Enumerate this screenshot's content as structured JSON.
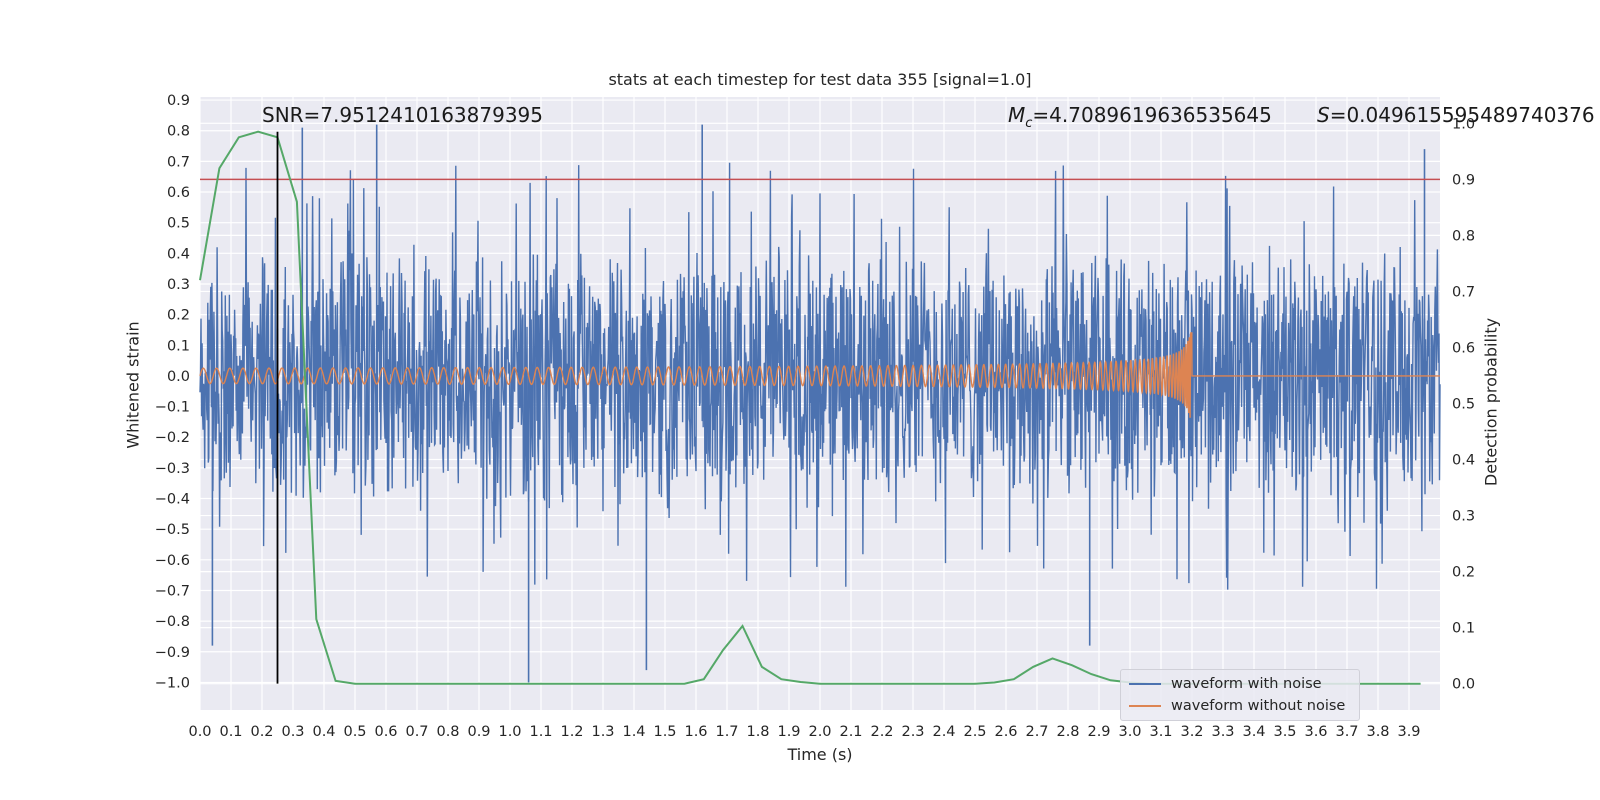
{
  "title": "stats at each timestep for test data 355 [signal=1.0]",
  "annotations": {
    "snr": "SNR=7.9512410163879395",
    "mc_label": "M",
    "mc_sub": "c",
    "mc_value": "=4.7089619636535645",
    "s_label": "S",
    "s_value": "=0.049615595489740376"
  },
  "colors": {
    "background": "#eaeaf2",
    "grid": "#ffffff",
    "noise": "#4c72b0",
    "clean": "#dd8452",
    "probability": "#55a868",
    "threshold": "#c44e52",
    "marker": "#000000"
  },
  "chart_data": {
    "type": "line",
    "xlabel": "Time (s)",
    "ylabel_left": "Whitened strain",
    "ylabel_right": "Detection probability",
    "xlim": [
      0.0,
      4.0
    ],
    "ylim_left": [
      -1.09,
      0.91
    ],
    "ylim_right": [
      -0.047,
      1.047
    ],
    "x_ticks": [
      "0.0",
      "0.1",
      "0.2",
      "0.3",
      "0.4",
      "0.5",
      "0.6",
      "0.7",
      "0.8",
      "0.9",
      "1.0",
      "1.1",
      "1.2",
      "1.3",
      "1.4",
      "1.5",
      "1.6",
      "1.7",
      "1.8",
      "1.9",
      "2.0",
      "2.1",
      "2.2",
      "2.3",
      "2.4",
      "2.5",
      "2.6",
      "2.7",
      "2.8",
      "2.9",
      "3.0",
      "3.1",
      "3.2",
      "3.3",
      "3.4",
      "3.5",
      "3.6",
      "3.7",
      "3.8",
      "3.9"
    ],
    "y_ticks_left": [
      "0.9",
      "0.8",
      "0.7",
      "0.6",
      "0.5",
      "0.4",
      "0.3",
      "0.2",
      "0.1",
      "0.0",
      "-0.1",
      "-0.2",
      "-0.3",
      "-0.4",
      "-0.5",
      "-0.6",
      "-0.7",
      "-0.8",
      "-0.9",
      "-1.0"
    ],
    "y_ticks_right": [
      "1.0",
      "0.9",
      "0.8",
      "0.7",
      "0.6",
      "0.5",
      "0.4",
      "0.3",
      "0.2",
      "0.1",
      "0.0"
    ],
    "grid": true,
    "legend_position": "lower-right",
    "threshold": 0.9,
    "merger_marker_time": 0.25,
    "series": [
      {
        "name": "waveform with noise",
        "axis": "left",
        "description_of_values": "whitened noisy strain, amplitude mostly within [-0.6, 0.6] with spikes to about 0.82 and -1.0",
        "x_range": [
          0.0,
          4.0
        ],
        "typical_envelope": [
          -0.45,
          0.45
        ],
        "peaks": [
          [
            0.33,
            0.81
          ],
          [
            0.57,
            0.82
          ],
          [
            1.62,
            0.82
          ],
          [
            1.06,
            -1.0
          ],
          [
            1.44,
            -0.96
          ],
          [
            0.04,
            -0.88
          ],
          [
            2.87,
            -0.88
          ],
          [
            3.95,
            0.74
          ]
        ]
      },
      {
        "name": "waveform without noise",
        "axis": "left",
        "description_of_values": "chirp signal, amplitude grows from about 0.02 to 0.17 until merger at 3.2 s, then flat at 0",
        "merger_time": 3.2,
        "start_amplitude": 0.025,
        "peak_amplitude": 0.17
      },
      {
        "name": "detection probability",
        "axis": "right",
        "x": [
          0.0,
          0.0625,
          0.125,
          0.1875,
          0.25,
          0.3125,
          0.375,
          0.4375,
          0.5,
          0.5625,
          0.625,
          0.6875,
          0.75,
          0.8125,
          0.875,
          0.9375,
          1.0,
          1.0625,
          1.125,
          1.1875,
          1.25,
          1.3125,
          1.375,
          1.4375,
          1.5,
          1.5625,
          1.625,
          1.6875,
          1.75,
          1.8125,
          1.875,
          1.9375,
          2.0,
          2.0625,
          2.125,
          2.1875,
          2.25,
          2.3125,
          2.375,
          2.4375,
          2.5,
          2.5625,
          2.625,
          2.6875,
          2.75,
          2.8125,
          2.875,
          2.9375,
          3.0,
          3.0625,
          3.125,
          3.1875,
          3.25,
          3.3125,
          3.375,
          3.4375,
          3.5,
          3.5625,
          3.625,
          3.6875,
          3.75,
          3.8125,
          3.875,
          3.9375
        ],
        "values": [
          0.72,
          0.92,
          0.975,
          0.985,
          0.975,
          0.86,
          0.115,
          0.005,
          0.0,
          0.0,
          0.0,
          0.0,
          0.0,
          0.0,
          0.0,
          0.0,
          0.0,
          0.0,
          0.0,
          0.0,
          0.0,
          0.0,
          0.0,
          0.0,
          0.0,
          0.0,
          0.008,
          0.06,
          0.103,
          0.03,
          0.008,
          0.003,
          0.0,
          0.0,
          0.0,
          0.0,
          0.0,
          0.0,
          0.0,
          0.0,
          0.0,
          0.002,
          0.008,
          0.03,
          0.045,
          0.033,
          0.017,
          0.006,
          0.002,
          0.0,
          0.0,
          0.0,
          0.0,
          0.0,
          0.0,
          0.0,
          0.0,
          0.0,
          0.0,
          0.0,
          0.0,
          0.0,
          0.0,
          0.0
        ]
      }
    ]
  },
  "legend": {
    "items": [
      "waveform with noise",
      "waveform without noise"
    ]
  }
}
